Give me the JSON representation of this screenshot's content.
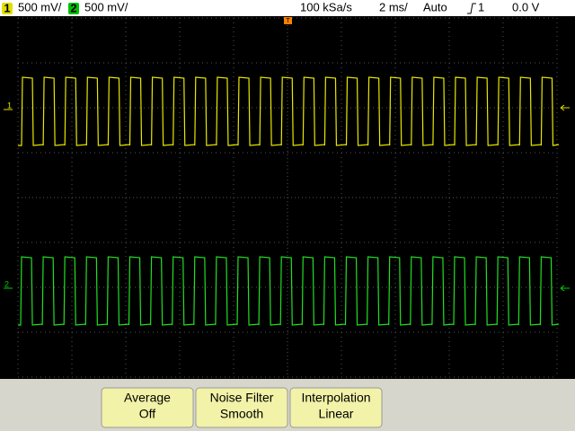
{
  "status_bar": {
    "channel_1": {
      "number": "1",
      "scale": "500 mV/"
    },
    "channel_2": {
      "number": "2",
      "scale": "500 mV/"
    },
    "sample_rate": "100 kSa/s",
    "timebase": "2 ms/",
    "trigger_mode": "Auto",
    "trigger_source": "1",
    "trigger_level": "0.0 V"
  },
  "markers": {
    "trigger_position": "T",
    "channel_1": "1",
    "channel_2": "2"
  },
  "softkeys": [
    {
      "line1": "Average",
      "line2": "Off"
    },
    {
      "line1": "Noise Filter",
      "line2": "Smooth"
    },
    {
      "line1": "Interpolation",
      "line2": "Linear"
    }
  ]
}
